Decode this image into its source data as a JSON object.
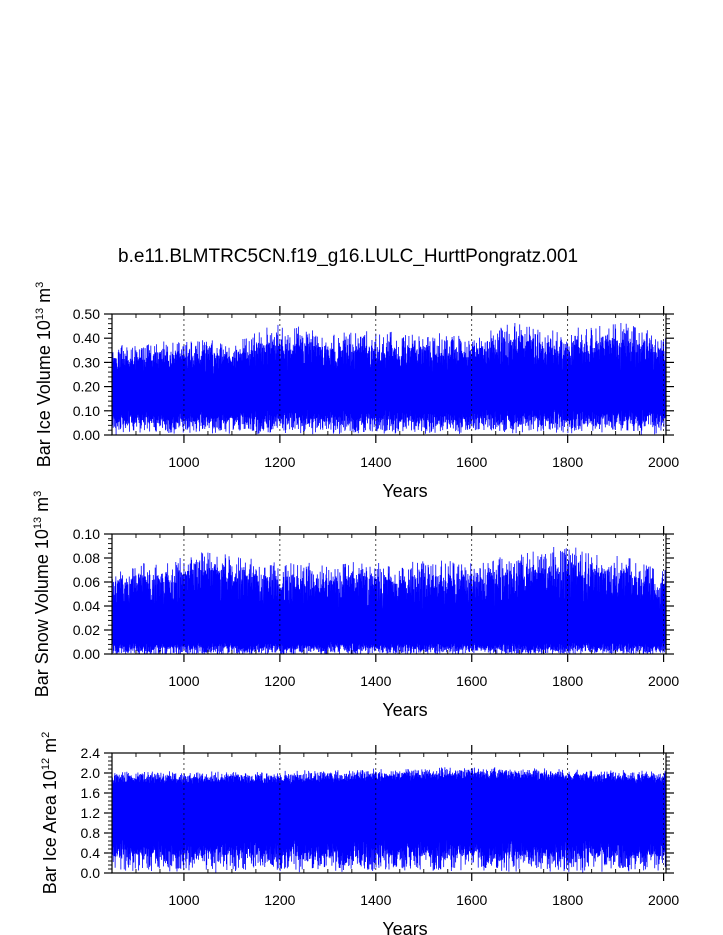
{
  "title": "b.e11.BLMTRC5CN.f19_g16.LULC_HurttPongratz.001",
  "line_color": "#0000ff",
  "chart_data": [
    {
      "type": "line",
      "name": "bar-ice-volume",
      "ylabel": {
        "main": "Bar Ice Volume 10",
        "sup": "13",
        "unit": " m",
        "unit_sup": "3"
      },
      "xlabel": "Years",
      "xlim": [
        850,
        2005
      ],
      "ylim": [
        0.0,
        0.5
      ],
      "xticks": [
        1000,
        1200,
        1400,
        1600,
        1800,
        2000
      ],
      "xtick_labels": [
        "1000",
        "1200",
        "1400",
        "1600",
        "1800",
        "2000"
      ],
      "yticks": [
        0.0,
        0.1,
        0.2,
        0.3,
        0.4,
        0.5
      ],
      "ytick_labels": [
        "0.00",
        "0.10",
        "0.20",
        "0.30",
        "0.40",
        "0.50"
      ],
      "grid_x": "dashed-vertical-at-major-ticks",
      "series": [
        {
          "x_start": 850,
          "x_end": 2005,
          "sampling": "monthly",
          "approx_mean": 0.2,
          "approx_min": 0.01,
          "approx_max": 0.47,
          "envelope_breakpoints": [
            [
              850,
              0.36
            ],
            [
              1000,
              0.4
            ],
            [
              1100,
              0.38
            ],
            [
              1190,
              0.46
            ],
            [
              1300,
              0.42
            ],
            [
              1460,
              0.43
            ],
            [
              1500,
              0.42
            ],
            [
              1600,
              0.4
            ],
            [
              1690,
              0.47
            ],
            [
              1800,
              0.43
            ],
            [
              1890,
              0.46
            ],
            [
              1950,
              0.45
            ],
            [
              2005,
              0.4
            ]
          ]
        }
      ]
    },
    {
      "type": "line",
      "name": "bar-snow-volume",
      "ylabel": {
        "main": "Bar Snow Volume 10",
        "sup": "13",
        "unit": " m",
        "unit_sup": "3"
      },
      "xlabel": "Years",
      "xlim": [
        850,
        2005
      ],
      "ylim": [
        0.0,
        0.1
      ],
      "xticks": [
        1000,
        1200,
        1400,
        1600,
        1800,
        2000
      ],
      "xtick_labels": [
        "1000",
        "1200",
        "1400",
        "1600",
        "1800",
        "2000"
      ],
      "yticks": [
        0.0,
        0.02,
        0.04,
        0.06,
        0.08,
        0.1
      ],
      "ytick_labels": [
        "0.00",
        "0.02",
        "0.04",
        "0.06",
        "0.08",
        "0.10"
      ],
      "grid_x": "dashed-vertical-at-major-ticks",
      "series": [
        {
          "x_start": 850,
          "x_end": 2005,
          "sampling": "monthly",
          "approx_mean": 0.025,
          "approx_min": 0.0,
          "approx_max": 0.09,
          "envelope_breakpoints": [
            [
              850,
              0.07
            ],
            [
              1060,
              0.087
            ],
            [
              1200,
              0.075
            ],
            [
              1400,
              0.075
            ],
            [
              1600,
              0.077
            ],
            [
              1810,
              0.09
            ],
            [
              1900,
              0.082
            ],
            [
              2005,
              0.07
            ]
          ]
        }
      ]
    },
    {
      "type": "line",
      "name": "bar-ice-area",
      "ylabel": {
        "main": "Bar Ice Area 10",
        "sup": "12",
        "unit": " m",
        "unit_sup": "2"
      },
      "xlabel": "Years",
      "xlim": [
        850,
        2005
      ],
      "ylim": [
        0.0,
        2.4
      ],
      "xticks": [
        1000,
        1200,
        1400,
        1600,
        1800,
        2000
      ],
      "xtick_labels": [
        "1000",
        "1200",
        "1400",
        "1600",
        "1800",
        "2000"
      ],
      "yticks": [
        0.0,
        0.4,
        0.8,
        1.2,
        1.6,
        2.0,
        2.4
      ],
      "ytick_labels": [
        "0.0",
        "0.4",
        "0.8",
        "1.2",
        "1.6",
        "2.0",
        "2.4"
      ],
      "grid_x": "dashed-vertical-at-major-ticks",
      "series": [
        {
          "x_start": 850,
          "x_end": 2005,
          "sampling": "monthly",
          "approx_mean": 1.2,
          "approx_min": 0.05,
          "approx_max": 2.1,
          "envelope_breakpoints": [
            [
              850,
              2.0
            ],
            [
              1200,
              2.0
            ],
            [
              1600,
              2.1
            ],
            [
              1800,
              2.05
            ],
            [
              2005,
              2.0
            ]
          ]
        }
      ]
    }
  ]
}
